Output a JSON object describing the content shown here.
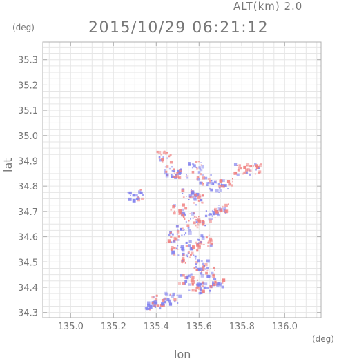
{
  "alt_label": "ALT(km) 2.0",
  "title": "2015/10/29 06:21:12",
  "y_unit": "(deg)",
  "x_unit": "(deg)",
  "chart_data": {
    "type": "heatmap",
    "xlabel": "lon",
    "ylabel": "lat",
    "xlim": [
      134.87,
      136.17
    ],
    "ylim": [
      34.28,
      35.37
    ],
    "xticks": [
      "135.0",
      "135.2",
      "135.4",
      "135.6",
      "135.8",
      "136.0"
    ],
    "yticks": [
      "34.3",
      "34.4",
      "34.5",
      "34.6",
      "34.7",
      "34.8",
      "34.9",
      "35.0",
      "35.1",
      "35.2",
      "35.3"
    ],
    "grid": true,
    "colors": {
      "positive": "#f08080",
      "negative": "#7f7fee",
      "frame": "#b0b0b0"
    },
    "patches": [
      {
        "lon": 135.43,
        "lat": 34.92,
        "sign": 1
      },
      {
        "lon": 135.47,
        "lat": 34.86,
        "sign": -1
      },
      {
        "lon": 135.51,
        "lat": 34.85,
        "sign": 1
      },
      {
        "lon": 135.58,
        "lat": 34.88,
        "sign": -1
      },
      {
        "lon": 135.62,
        "lat": 34.83,
        "sign": 1
      },
      {
        "lon": 135.67,
        "lat": 34.8,
        "sign": -1
      },
      {
        "lon": 135.72,
        "lat": 34.81,
        "sign": 1
      },
      {
        "lon": 135.79,
        "lat": 34.87,
        "sign": 1
      },
      {
        "lon": 135.85,
        "lat": 34.87,
        "sign": 1
      },
      {
        "lon": 135.55,
        "lat": 34.77,
        "sign": -1
      },
      {
        "lon": 135.58,
        "lat": 34.75,
        "sign": 1
      },
      {
        "lon": 135.5,
        "lat": 34.71,
        "sign": 1
      },
      {
        "lon": 135.55,
        "lat": 34.68,
        "sign": -1
      },
      {
        "lon": 135.6,
        "lat": 34.66,
        "sign": 1
      },
      {
        "lon": 135.52,
        "lat": 34.63,
        "sign": -1
      },
      {
        "lon": 135.48,
        "lat": 34.6,
        "sign": 1
      },
      {
        "lon": 135.57,
        "lat": 34.57,
        "sign": -1
      },
      {
        "lon": 135.62,
        "lat": 34.59,
        "sign": 1
      },
      {
        "lon": 135.5,
        "lat": 34.55,
        "sign": -1
      },
      {
        "lon": 135.55,
        "lat": 34.52,
        "sign": 1
      },
      {
        "lon": 135.6,
        "lat": 34.49,
        "sign": -1
      },
      {
        "lon": 135.64,
        "lat": 34.47,
        "sign": 1
      },
      {
        "lon": 135.53,
        "lat": 34.44,
        "sign": -1
      },
      {
        "lon": 135.58,
        "lat": 34.41,
        "sign": 1
      },
      {
        "lon": 135.62,
        "lat": 34.4,
        "sign": -1
      },
      {
        "lon": 135.68,
        "lat": 34.42,
        "sign": -1
      },
      {
        "lon": 135.47,
        "lat": 34.36,
        "sign": -1
      },
      {
        "lon": 135.41,
        "lat": 34.35,
        "sign": 1
      },
      {
        "lon": 135.38,
        "lat": 34.33,
        "sign": -1
      },
      {
        "lon": 135.3,
        "lat": 34.77,
        "sign": -1
      },
      {
        "lon": 135.66,
        "lat": 34.69,
        "sign": -1
      },
      {
        "lon": 135.7,
        "lat": 34.71,
        "sign": 1
      }
    ]
  }
}
